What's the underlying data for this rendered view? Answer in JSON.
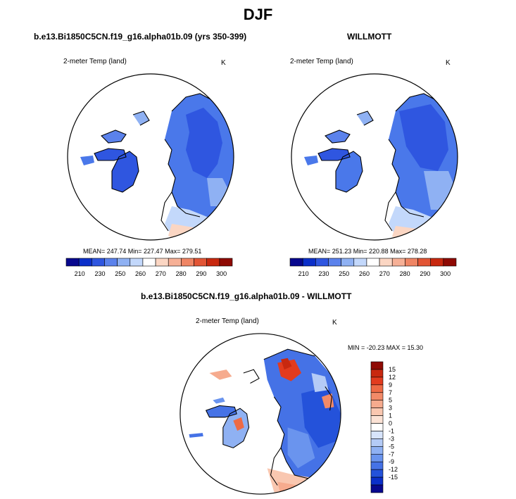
{
  "figure": {
    "title": "DJF"
  },
  "panels": {
    "model": {
      "title": "b.e13.Bi1850C5CN.f19_g16.alpha01b.09 (yrs 350-399)",
      "variable": "2-meter Temp (land)",
      "units": "K",
      "stats": "MEAN= 247.74  Min= 227.47  Max= 279.51"
    },
    "obs": {
      "title": "WILLMOTT",
      "variable": "2-meter Temp (land)",
      "units": "K",
      "stats": "MEAN= 251.23  Min= 220.88  Max= 278.28"
    },
    "diff": {
      "title": "b.e13.Bi1850C5CN.f19_g16.alpha01b.09 - WILLMOTT",
      "variable": "2-meter Temp (land)",
      "units": "K",
      "stats": "MIN = -20.23 MAX =  15.30"
    }
  },
  "colorbars": {
    "abs_labels": [
      "210",
      "230",
      "250",
      "260",
      "270",
      "280",
      "290",
      "300"
    ],
    "abs_colors": [
      "#08088e",
      "#0b2fc9",
      "#2f56e0",
      "#5b82ec",
      "#8fb1f3",
      "#c3d8fb",
      "#ffffff",
      "#fbd6c3",
      "#f6b096",
      "#ef8564",
      "#e25535",
      "#c8280f",
      "#8f0a04"
    ],
    "diff_labels": [
      "15",
      "12",
      "9",
      "7",
      "5",
      "3",
      "1",
      "0",
      "-1",
      "-3",
      "-5",
      "-7",
      "-9",
      "-12",
      "-15"
    ],
    "diff_colors": [
      "#8f0a04",
      "#c8280f",
      "#e23b1e",
      "#ee6a45",
      "#f28a68",
      "#f6ab8e",
      "#f9c7b0",
      "#fbe2d5",
      "#ffffff",
      "#d7e4fb",
      "#b4cbf6",
      "#8fb1f3",
      "#6a94ee",
      "#4572e6",
      "#2452da",
      "#0b2fc9",
      "#08088e"
    ]
  }
}
